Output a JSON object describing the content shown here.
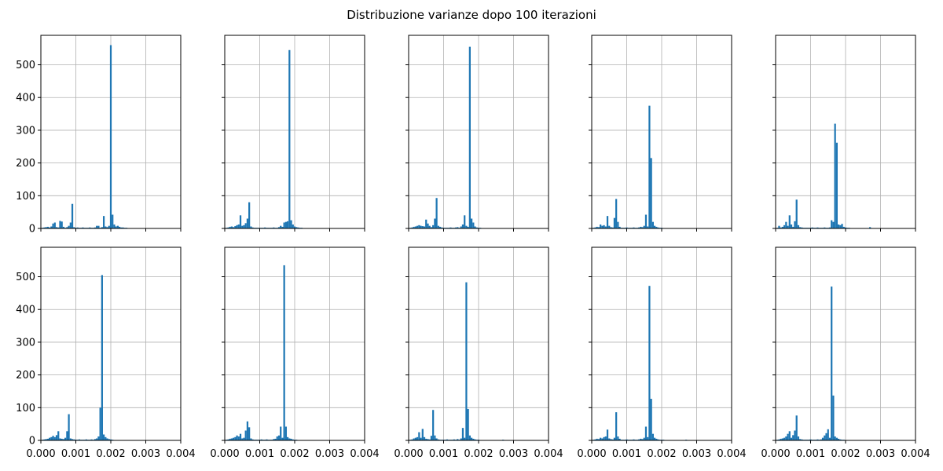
{
  "title": "Distribuzione varianze dopo 100 iterazioni",
  "colors": {
    "bar": "#1f77b4",
    "grid": "#b0b0b0",
    "axis": "#000000"
  },
  "chart_data": [
    {
      "type": "bar",
      "panel": "row1-col1",
      "xlim": [
        0,
        0.004
      ],
      "ylim": [
        0,
        590
      ],
      "grid": true,
      "x": [
        5e-05,
        0.0001,
        0.00015,
        0.0002,
        0.00025,
        0.0003,
        0.00035,
        0.0004,
        0.00045,
        0.0005,
        0.00055,
        0.0006,
        0.00065,
        0.0007,
        0.00075,
        0.0008,
        0.00085,
        0.0009,
        0.00095,
        0.001,
        0.00105,
        0.0011,
        0.00115,
        0.0012,
        0.00125,
        0.0013,
        0.00135,
        0.0014,
        0.00145,
        0.0015,
        0.00155,
        0.0016,
        0.00165,
        0.0017,
        0.00175,
        0.0018,
        0.00185,
        0.0019,
        0.00195,
        0.002,
        0.00205,
        0.0021,
        0.00215,
        0.0022,
        0.00225,
        0.0023,
        0.00235,
        0.0024,
        0.00245,
        0.0025,
        0.00255,
        0.0026,
        0.00265,
        0.0027
      ],
      "values": [
        2,
        3,
        4,
        5,
        3,
        6,
        15,
        18,
        4,
        3,
        23,
        21,
        5,
        2,
        4,
        8,
        18,
        75,
        4,
        2,
        3,
        2,
        2,
        3,
        2,
        2,
        2,
        3,
        2,
        2,
        3,
        8,
        8,
        2,
        4,
        38,
        6,
        4,
        8,
        560,
        42,
        12,
        6,
        8,
        5,
        3,
        3,
        2,
        2,
        1,
        1,
        1,
        1,
        1
      ]
    },
    {
      "type": "bar",
      "panel": "row1-col2",
      "xlim": [
        0,
        0.004
      ],
      "ylim": [
        0,
        590
      ],
      "grid": true,
      "x": [
        5e-05,
        0.0001,
        0.00015,
        0.0002,
        0.00025,
        0.0003,
        0.00035,
        0.0004,
        0.00045,
        0.0005,
        0.00055,
        0.0006,
        0.00065,
        0.0007,
        0.00075,
        0.0008,
        0.00085,
        0.0009,
        0.00095,
        0.001,
        0.00105,
        0.0011,
        0.00115,
        0.0012,
        0.00125,
        0.0013,
        0.00135,
        0.0014,
        0.00145,
        0.0015,
        0.00155,
        0.0016,
        0.00165,
        0.0017,
        0.00175,
        0.0018,
        0.00185,
        0.0019,
        0.00195,
        0.002,
        0.00205,
        0.0021,
        0.00215,
        0.0022,
        0.00225,
        0.0023,
        0.00235,
        0.0024,
        0.00245,
        0.0025,
        0.00255,
        0.0026,
        0.00265,
        0.0027
      ],
      "values": [
        2,
        3,
        5,
        6,
        4,
        7,
        10,
        12,
        40,
        8,
        10,
        16,
        30,
        80,
        6,
        3,
        2,
        2,
        2,
        2,
        2,
        2,
        3,
        2,
        2,
        2,
        2,
        3,
        2,
        2,
        4,
        8,
        5,
        18,
        20,
        22,
        545,
        25,
        12,
        6,
        4,
        3,
        2,
        2,
        1,
        1,
        1,
        1,
        1,
        1,
        1,
        1,
        1,
        1
      ]
    },
    {
      "type": "bar",
      "panel": "row1-col3",
      "xlim": [
        0,
        0.004
      ],
      "ylim": [
        0,
        590
      ],
      "grid": true,
      "x": [
        5e-05,
        0.0001,
        0.00015,
        0.0002,
        0.00025,
        0.0003,
        0.00035,
        0.0004,
        0.00045,
        0.0005,
        0.00055,
        0.0006,
        0.00065,
        0.0007,
        0.00075,
        0.0008,
        0.00085,
        0.0009,
        0.00095,
        0.001,
        0.00105,
        0.0011,
        0.00115,
        0.0012,
        0.00125,
        0.0013,
        0.00135,
        0.0014,
        0.00145,
        0.0015,
        0.00155,
        0.0016,
        0.00165,
        0.0017,
        0.00175,
        0.0018,
        0.00185,
        0.0019,
        0.00195,
        0.002,
        0.00205,
        0.0021,
        0.00215,
        0.0022,
        0.00225,
        0.0023,
        0.00235,
        0.0024,
        0.00245,
        0.0025,
        0.00255,
        0.0026,
        0.00265,
        0.0027
      ],
      "values": [
        2,
        3,
        5,
        6,
        8,
        10,
        8,
        7,
        6,
        27,
        15,
        8,
        4,
        10,
        30,
        93,
        8,
        5,
        3,
        2,
        2,
        2,
        2,
        3,
        2,
        2,
        3,
        4,
        2,
        6,
        12,
        40,
        8,
        5,
        555,
        30,
        18,
        6,
        3,
        2,
        2,
        1,
        1,
        1,
        1,
        1,
        1,
        1,
        1,
        1,
        1,
        1,
        1,
        1
      ]
    },
    {
      "type": "bar",
      "panel": "row1-col4",
      "xlim": [
        0,
        0.004
      ],
      "ylim": [
        0,
        590
      ],
      "grid": true,
      "x": [
        5e-05,
        0.0001,
        0.00015,
        0.0002,
        0.00025,
        0.0003,
        0.00035,
        0.0004,
        0.00045,
        0.0005,
        0.00055,
        0.0006,
        0.00065,
        0.0007,
        0.00075,
        0.0008,
        0.00085,
        0.0009,
        0.00095,
        0.001,
        0.00105,
        0.0011,
        0.00115,
        0.0012,
        0.00125,
        0.0013,
        0.00135,
        0.0014,
        0.00145,
        0.0015,
        0.00155,
        0.0016,
        0.00165,
        0.0017,
        0.00175,
        0.0018,
        0.00185,
        0.0019,
        0.00195,
        0.002,
        0.00205,
        0.0021,
        0.00215,
        0.0022,
        0.00225,
        0.0023,
        0.00235,
        0.0024,
        0.00245,
        0.0025,
        0.00255,
        0.0026,
        0.00265,
        0.0027
      ],
      "values": [
        2,
        3,
        5,
        4,
        12,
        8,
        10,
        6,
        38,
        8,
        4,
        3,
        32,
        90,
        20,
        5,
        2,
        2,
        2,
        3,
        2,
        2,
        2,
        3,
        2,
        2,
        3,
        5,
        4,
        8,
        42,
        6,
        375,
        215,
        20,
        8,
        5,
        3,
        2,
        2,
        1,
        1,
        1,
        1,
        1,
        1,
        1,
        1,
        1,
        1,
        1,
        1,
        1,
        1
      ]
    },
    {
      "type": "bar",
      "panel": "row1-col5",
      "xlim": [
        0,
        0.004
      ],
      "ylim": [
        0,
        590
      ],
      "grid": true,
      "x": [
        5e-05,
        0.0001,
        0.00015,
        0.0002,
        0.00025,
        0.0003,
        0.00035,
        0.0004,
        0.00045,
        0.0005,
        0.00055,
        0.0006,
        0.00065,
        0.0007,
        0.00075,
        0.0008,
        0.00085,
        0.0009,
        0.00095,
        0.001,
        0.00105,
        0.0011,
        0.00115,
        0.0012,
        0.00125,
        0.0013,
        0.00135,
        0.0014,
        0.00145,
        0.0015,
        0.00155,
        0.0016,
        0.00165,
        0.0017,
        0.00175,
        0.0018,
        0.00185,
        0.0019,
        0.00195,
        0.002,
        0.00205,
        0.0021,
        0.00215,
        0.0022,
        0.00225,
        0.0023,
        0.00235,
        0.0024,
        0.00245,
        0.0025,
        0.00255,
        0.0026,
        0.00265,
        0.0027
      ],
      "values": [
        2,
        8,
        3,
        5,
        10,
        20,
        8,
        40,
        12,
        5,
        22,
        88,
        10,
        4,
        3,
        2,
        2,
        2,
        2,
        2,
        3,
        2,
        2,
        3,
        2,
        2,
        2,
        3,
        2,
        2,
        3,
        25,
        20,
        320,
        262,
        12,
        10,
        14,
        5,
        3,
        2,
        2,
        1,
        1,
        1,
        1,
        1,
        1,
        1,
        1,
        1,
        1,
        1,
        4
      ]
    },
    {
      "type": "bar",
      "panel": "row2-col1",
      "xlim": [
        0,
        0.004
      ],
      "ylim": [
        0,
        590
      ],
      "grid": true,
      "x": [
        5e-05,
        0.0001,
        0.00015,
        0.0002,
        0.00025,
        0.0003,
        0.00035,
        0.0004,
        0.00045,
        0.0005,
        0.00055,
        0.0006,
        0.00065,
        0.0007,
        0.00075,
        0.0008,
        0.00085,
        0.0009,
        0.00095,
        0.001,
        0.00105,
        0.0011,
        0.00115,
        0.0012,
        0.00125,
        0.0013,
        0.00135,
        0.0014,
        0.00145,
        0.0015,
        0.00155,
        0.0016,
        0.00165,
        0.0017,
        0.00175,
        0.0018,
        0.00185,
        0.0019,
        0.00195,
        0.002,
        0.00205,
        0.0021,
        0.00215,
        0.0022,
        0.00225,
        0.0023,
        0.00235,
        0.0024,
        0.00245,
        0.0025,
        0.00255,
        0.0026,
        0.00265,
        0.0027
      ],
      "values": [
        2,
        3,
        4,
        5,
        8,
        10,
        14,
        10,
        16,
        28,
        6,
        5,
        4,
        8,
        28,
        80,
        6,
        4,
        3,
        2,
        2,
        3,
        2,
        2,
        2,
        3,
        2,
        2,
        3,
        2,
        4,
        6,
        12,
        100,
        505,
        18,
        10,
        6,
        4,
        3,
        2,
        1,
        1,
        1,
        1,
        1,
        1,
        1,
        1,
        1,
        1,
        1,
        1,
        1
      ]
    },
    {
      "type": "bar",
      "panel": "row2-col2",
      "xlim": [
        0,
        0.004
      ],
      "ylim": [
        0,
        590
      ],
      "grid": true,
      "x": [
        5e-05,
        0.0001,
        0.00015,
        0.0002,
        0.00025,
        0.0003,
        0.00035,
        0.0004,
        0.00045,
        0.0005,
        0.00055,
        0.0006,
        0.00065,
        0.0007,
        0.00075,
        0.0008,
        0.00085,
        0.0009,
        0.00095,
        0.001,
        0.00105,
        0.0011,
        0.00115,
        0.0012,
        0.00125,
        0.0013,
        0.00135,
        0.0014,
        0.00145,
        0.0015,
        0.00155,
        0.0016,
        0.00165,
        0.0017,
        0.00175,
        0.0018,
        0.00185,
        0.0019,
        0.00195,
        0.002,
        0.00205,
        0.0021,
        0.00215,
        0.0022,
        0.00225,
        0.0023,
        0.00235,
        0.0024,
        0.00245,
        0.0025,
        0.00255,
        0.0026,
        0.00265,
        0.0027
      ],
      "values": [
        2,
        3,
        5,
        6,
        8,
        10,
        15,
        12,
        20,
        6,
        8,
        30,
        58,
        40,
        6,
        3,
        2,
        2,
        2,
        2,
        3,
        2,
        2,
        3,
        2,
        2,
        2,
        4,
        5,
        12,
        15,
        42,
        8,
        535,
        42,
        10,
        6,
        5,
        3,
        2,
        2,
        1,
        1,
        1,
        1,
        1,
        1,
        1,
        1,
        1,
        1,
        1,
        1,
        1
      ]
    },
    {
      "type": "bar",
      "panel": "row2-col3",
      "xlim": [
        0,
        0.004
      ],
      "ylim": [
        0,
        590
      ],
      "grid": true,
      "x": [
        5e-05,
        0.0001,
        0.00015,
        0.0002,
        0.00025,
        0.0003,
        0.00035,
        0.0004,
        0.00045,
        0.0005,
        0.00055,
        0.0006,
        0.00065,
        0.0007,
        0.00075,
        0.0008,
        0.00085,
        0.0009,
        0.00095,
        0.001,
        0.00105,
        0.0011,
        0.00115,
        0.0012,
        0.00125,
        0.0013,
        0.00135,
        0.0014,
        0.00145,
        0.0015,
        0.00155,
        0.0016,
        0.00165,
        0.0017,
        0.00175,
        0.0018,
        0.00185,
        0.0019,
        0.00195,
        0.002,
        0.00205,
        0.0021,
        0.00215,
        0.0022,
        0.00225,
        0.0023,
        0.00235,
        0.0024,
        0.00245,
        0.0025,
        0.00255,
        0.0026,
        0.00265,
        0.0027
      ],
      "values": [
        2,
        3,
        6,
        8,
        10,
        25,
        8,
        35,
        10,
        5,
        4,
        3,
        14,
        93,
        15,
        6,
        3,
        2,
        2,
        2,
        2,
        3,
        2,
        2,
        2,
        3,
        2,
        4,
        2,
        6,
        38,
        8,
        483,
        96,
        15,
        8,
        5,
        3,
        2,
        2,
        1,
        1,
        1,
        1,
        1,
        1,
        1,
        1,
        1,
        1,
        1,
        1,
        1,
        2
      ]
    },
    {
      "type": "bar",
      "panel": "row2-col4",
      "xlim": [
        0,
        0.004
      ],
      "ylim": [
        0,
        590
      ],
      "grid": true,
      "x": [
        5e-05,
        0.0001,
        0.00015,
        0.0002,
        0.00025,
        0.0003,
        0.00035,
        0.0004,
        0.00045,
        0.0005,
        0.00055,
        0.0006,
        0.00065,
        0.0007,
        0.00075,
        0.0008,
        0.00085,
        0.0009,
        0.00095,
        0.001,
        0.00105,
        0.0011,
        0.00115,
        0.0012,
        0.00125,
        0.0013,
        0.00135,
        0.0014,
        0.00145,
        0.0015,
        0.00155,
        0.0016,
        0.00165,
        0.0017,
        0.00175,
        0.0018,
        0.00185,
        0.0019,
        0.00195,
        0.002,
        0.00205,
        0.0021,
        0.00215,
        0.0022,
        0.00225,
        0.0023,
        0.00235,
        0.0024,
        0.00245,
        0.0025,
        0.00255,
        0.0026,
        0.00265,
        0.0027
      ],
      "values": [
        2,
        3,
        5,
        4,
        8,
        6,
        10,
        12,
        33,
        6,
        4,
        3,
        8,
        86,
        12,
        5,
        2,
        2,
        2,
        3,
        2,
        2,
        2,
        3,
        2,
        2,
        3,
        5,
        4,
        8,
        42,
        10,
        472,
        127,
        20,
        8,
        5,
        3,
        2,
        2,
        2,
        1,
        1,
        1,
        1,
        1,
        1,
        1,
        1,
        1,
        1,
        1,
        1,
        2
      ]
    },
    {
      "type": "bar",
      "panel": "row2-col5",
      "xlim": [
        0,
        0.004
      ],
      "ylim": [
        0,
        590
      ],
      "grid": true,
      "x": [
        5e-05,
        0.0001,
        0.00015,
        0.0002,
        0.00025,
        0.0003,
        0.00035,
        0.0004,
        0.00045,
        0.0005,
        0.00055,
        0.0006,
        0.00065,
        0.0007,
        0.00075,
        0.0008,
        0.00085,
        0.0009,
        0.00095,
        0.001,
        0.00105,
        0.0011,
        0.00115,
        0.0012,
        0.00125,
        0.0013,
        0.00135,
        0.0014,
        0.00145,
        0.0015,
        0.00155,
        0.0016,
        0.00165,
        0.0017,
        0.00175,
        0.0018,
        0.00185,
        0.0019,
        0.00195,
        0.002,
        0.00205,
        0.0021,
        0.00215,
        0.0022,
        0.00225,
        0.0023,
        0.00235,
        0.0024,
        0.00245,
        0.0025,
        0.00255,
        0.0026,
        0.00265,
        0.0027
      ],
      "values": [
        2,
        3,
        5,
        6,
        8,
        12,
        20,
        28,
        8,
        16,
        30,
        76,
        12,
        4,
        3,
        2,
        2,
        2,
        2,
        3,
        2,
        2,
        2,
        3,
        2,
        3,
        8,
        15,
        22,
        34,
        8,
        470,
        137,
        12,
        8,
        5,
        3,
        2,
        2,
        1,
        1,
        1,
        1,
        1,
        1,
        1,
        1,
        1,
        1,
        1,
        1,
        1,
        1,
        1
      ]
    }
  ],
  "axes": {
    "y_ticks": [
      0,
      100,
      200,
      300,
      400,
      500
    ],
    "x_ticks": [
      0,
      0.001,
      0.002,
      0.003,
      0.004
    ],
    "x_tick_labels": [
      "0.000",
      "0.001",
      "0.002",
      "0.003",
      "0.004"
    ]
  }
}
